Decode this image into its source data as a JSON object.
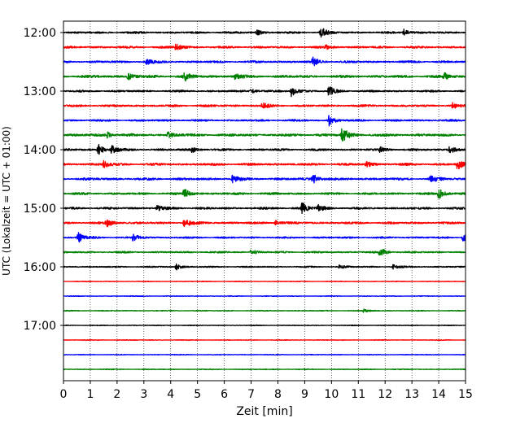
{
  "chart_data": {
    "type": "line",
    "title": "",
    "xlabel": "Zeit  [min]",
    "ylabel": "UTC (Lokalzeit = UTC + 01:00)",
    "xlim": [
      0,
      15
    ],
    "x_ticks": [
      "0",
      "1",
      "2",
      "3",
      "4",
      "5",
      "6",
      "7",
      "8",
      "9",
      "10",
      "11",
      "12",
      "13",
      "14",
      "15"
    ],
    "y_ticks": [
      "12:00",
      "13:00",
      "14:00",
      "15:00",
      "16:00",
      "17:00"
    ],
    "grid": "vertical-dotted",
    "line_colors": [
      "#000000",
      "#ff0000",
      "#0000ff",
      "#008000"
    ],
    "traces": [
      {
        "start": "12:00",
        "color": "#000000",
        "noise": 0.9,
        "events": [
          [
            9.6,
            3.0
          ],
          [
            12.7,
            1.8
          ],
          [
            7.2,
            1.5
          ]
        ]
      },
      {
        "start": "12:15",
        "color": "#ff0000",
        "noise": 1.0,
        "events": [
          [
            4.2,
            2.2
          ],
          [
            9.8,
            1.3
          ]
        ]
      },
      {
        "start": "12:30",
        "color": "#0000ff",
        "noise": 1.0,
        "events": [
          [
            9.3,
            2.3
          ],
          [
            3.1,
            1.3
          ]
        ]
      },
      {
        "start": "12:45",
        "color": "#008000",
        "noise": 1.2,
        "events": [
          [
            4.5,
            2.6
          ],
          [
            2.4,
            1.8
          ],
          [
            14.2,
            1.8
          ],
          [
            6.4,
            1.6
          ]
        ]
      },
      {
        "start": "13:00",
        "color": "#000000",
        "noise": 0.9,
        "events": [
          [
            8.5,
            3.0
          ],
          [
            9.9,
            2.6
          ],
          [
            7.0,
            1.3
          ]
        ]
      },
      {
        "start": "13:15",
        "color": "#ff0000",
        "noise": 1.0,
        "events": [
          [
            7.4,
            1.5
          ],
          [
            14.5,
            1.5
          ]
        ]
      },
      {
        "start": "13:30",
        "color": "#0000ff",
        "noise": 0.9,
        "events": [
          [
            9.9,
            3.0
          ]
        ]
      },
      {
        "start": "13:45",
        "color": "#008000",
        "noise": 1.2,
        "events": [
          [
            10.4,
            4.5
          ],
          [
            1.6,
            1.9
          ],
          [
            3.9,
            1.6
          ]
        ]
      },
      {
        "start": "14:00",
        "color": "#000000",
        "noise": 1.0,
        "events": [
          [
            1.3,
            3.0
          ],
          [
            1.8,
            2.0
          ],
          [
            14.4,
            2.4
          ],
          [
            4.8,
            1.6
          ],
          [
            11.8,
            1.4
          ]
        ]
      },
      {
        "start": "14:15",
        "color": "#ff0000",
        "noise": 1.1,
        "events": [
          [
            14.7,
            3.0
          ],
          [
            1.5,
            1.8
          ],
          [
            11.3,
            1.4
          ]
        ]
      },
      {
        "start": "14:30",
        "color": "#0000ff",
        "noise": 1.1,
        "events": [
          [
            9.3,
            3.0
          ],
          [
            13.7,
            1.9
          ],
          [
            6.3,
            1.8
          ]
        ]
      },
      {
        "start": "14:45",
        "color": "#008000",
        "noise": 1.0,
        "events": [
          [
            4.5,
            3.0
          ],
          [
            14.0,
            3.0
          ]
        ]
      },
      {
        "start": "15:00",
        "color": "#000000",
        "noise": 1.0,
        "events": [
          [
            8.9,
            3.2
          ],
          [
            9.5,
            1.6
          ],
          [
            3.5,
            1.5
          ]
        ]
      },
      {
        "start": "15:15",
        "color": "#ff0000",
        "noise": 1.0,
        "events": [
          [
            1.6,
            2.6
          ],
          [
            4.5,
            2.6
          ],
          [
            7.9,
            1.4
          ]
        ]
      },
      {
        "start": "15:30",
        "color": "#0000ff",
        "noise": 0.8,
        "events": [
          [
            0.55,
            3.0
          ],
          [
            2.6,
            2.0
          ],
          [
            14.9,
            2.2
          ]
        ]
      },
      {
        "start": "15:45",
        "color": "#008000",
        "noise": 0.8,
        "events": [
          [
            11.8,
            3.0
          ],
          [
            7.0,
            1.2
          ]
        ]
      },
      {
        "start": "16:00",
        "color": "#000000",
        "noise": 0.6,
        "events": [
          [
            4.2,
            1.7
          ],
          [
            12.3,
            1.4
          ],
          [
            10.3,
            1.2
          ]
        ]
      },
      {
        "start": "16:15",
        "color": "#ff0000",
        "noise": 0.35,
        "events": []
      },
      {
        "start": "16:30",
        "color": "#0000ff",
        "noise": 0.35,
        "events": []
      },
      {
        "start": "16:45",
        "color": "#008000",
        "noise": 0.4,
        "events": [
          [
            11.2,
            1.0
          ]
        ]
      },
      {
        "start": "17:00",
        "color": "#000000",
        "noise": 0.35,
        "events": []
      },
      {
        "start": "17:15",
        "color": "#ff0000",
        "noise": 0.35,
        "events": []
      },
      {
        "start": "17:30",
        "color": "#0000ff",
        "noise": 0.35,
        "events": []
      },
      {
        "start": "17:45",
        "color": "#008000",
        "noise": 0.4,
        "events": []
      }
    ]
  }
}
